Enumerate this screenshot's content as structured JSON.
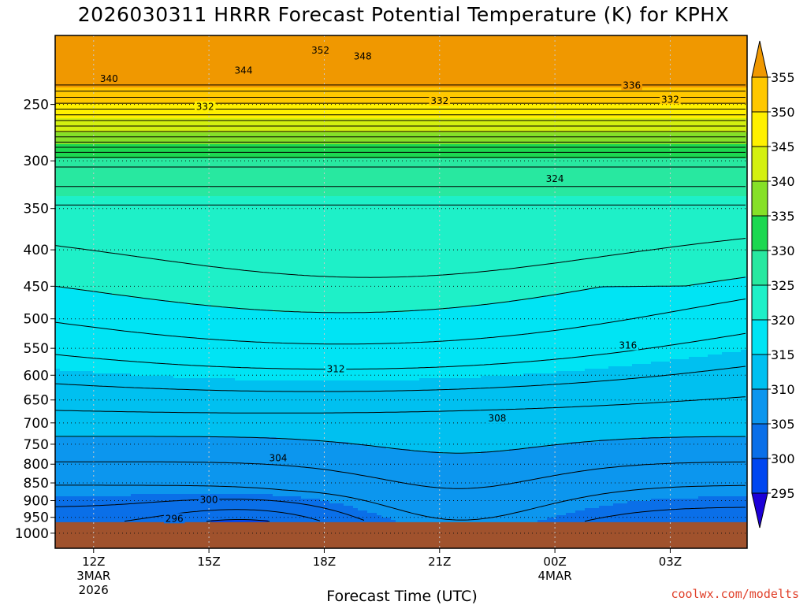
{
  "title": "2026030311 HRRR Forecast Potential Temperature (K) for KPHX",
  "x_axis_title": "Forecast Time (UTC)",
  "credit": "coolwx.com/modelts",
  "chart_data": {
    "type": "heatmap",
    "title": "2026030311 HRRR Forecast Potential Temperature (K) for KPHX",
    "xlabel": "Forecast Time (UTC)",
    "ylabel": "",
    "x_hours": [
      11,
      23
    ],
    "x_ticks": [
      {
        "hour": 12,
        "label": "12Z",
        "sub": [
          "3MAR",
          "2026"
        ]
      },
      {
        "hour": 15,
        "label": "15Z",
        "sub": []
      },
      {
        "hour": 18,
        "label": "18Z",
        "sub": []
      },
      {
        "hour": 21,
        "label": "21Z",
        "sub": []
      },
      {
        "hour": 24,
        "label": "00Z",
        "sub": [
          "4MAR"
        ]
      },
      {
        "hour": 27,
        "label": "03Z",
        "sub": []
      }
    ],
    "x_range": [
      11,
      29
    ],
    "y_axis": "pressure (hPa), log scale, inverted",
    "y_range": [
      1050,
      200
    ],
    "y_ticks": [
      250,
      300,
      350,
      400,
      450,
      500,
      550,
      600,
      650,
      700,
      750,
      800,
      850,
      900,
      950,
      1000
    ],
    "surface_pressure": 965,
    "colorbar": {
      "levels": [
        295,
        300,
        305,
        310,
        315,
        320,
        325,
        330,
        335,
        340,
        345,
        350,
        355
      ],
      "colors": [
        "#1c00d8",
        "#0046f0",
        "#0a6fe8",
        "#0c96ee",
        "#00c0f0",
        "#00e4f4",
        "#1ef0c8",
        "#28e8a0",
        "#1cd850",
        "#86e028",
        "#d4f010",
        "#fff000",
        "#ffc800",
        "#f09800"
      ]
    },
    "contour_labels": [
      {
        "value": 352,
        "hour": 17.9,
        "pressure": 210
      },
      {
        "value": 348,
        "hour": 19.0,
        "pressure": 214
      },
      {
        "value": 344,
        "hour": 15.9,
        "pressure": 224
      },
      {
        "value": 340,
        "hour": 12.4,
        "pressure": 230
      },
      {
        "value": 336,
        "hour": 26.0,
        "pressure": 235
      },
      {
        "value": 332,
        "hour": 14.9,
        "pressure": 252
      },
      {
        "value": 332,
        "hour": 21.0,
        "pressure": 247
      },
      {
        "value": 332,
        "hour": 27.0,
        "pressure": 246
      },
      {
        "value": 324,
        "hour": 24.0,
        "pressure": 318
      },
      {
        "value": 316,
        "hour": 25.9,
        "pressure": 545
      },
      {
        "value": 312,
        "hour": 18.3,
        "pressure": 588
      },
      {
        "value": 308,
        "hour": 22.5,
        "pressure": 690
      },
      {
        "value": 304,
        "hour": 16.8,
        "pressure": 784
      },
      {
        "value": 300,
        "hour": 15.0,
        "pressure": 898
      },
      {
        "value": 296,
        "hour": 14.1,
        "pressure": 954
      }
    ]
  }
}
